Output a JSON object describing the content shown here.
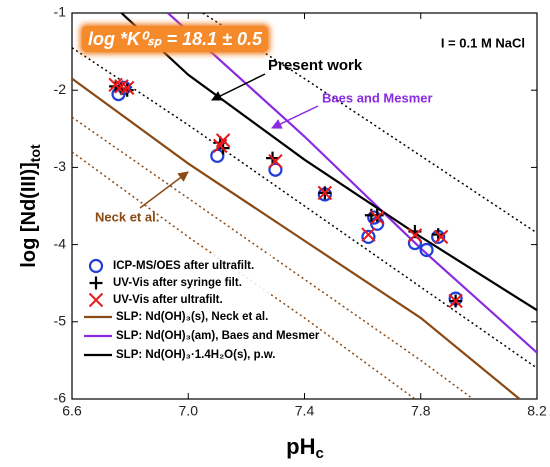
{
  "chart_data": {
    "type": "scatter",
    "xlabel": {
      "main": "pH",
      "sub": "c"
    },
    "ylabel": {
      "main": "log [Nd(III)]",
      "sub": "tot"
    },
    "xlim": [
      6.6,
      8.2
    ],
    "ylim": [
      -6,
      -1
    ],
    "xticks": [
      6.6,
      {
        "value": 7,
        "label": "7.0"
      },
      7.4,
      7.8,
      8.2
    ],
    "yticks": [
      -1,
      -2,
      -3,
      -4,
      -5,
      -6
    ],
    "series": [
      {
        "name": "ICP-MS/OES after ultrafilt.",
        "color": "#1f3fd8",
        "marker": "circle",
        "x": [
          6.76,
          6.78,
          7.1,
          7.3,
          7.47,
          7.62,
          7.64,
          7.65,
          7.78,
          7.82,
          7.86,
          7.92
        ],
        "values": [
          -2.05,
          -1.97,
          -2.85,
          -3.03,
          -3.35,
          -3.9,
          -3.65,
          -3.73,
          -3.98,
          -4.07,
          -3.9,
          -4.7
        ]
      },
      {
        "name": "UV-Vis after syringe filt.",
        "color": "#000000",
        "marker": "plus",
        "x": [
          6.75,
          6.77,
          6.79,
          7.11,
          7.12,
          7.29,
          7.47,
          7.63,
          7.65,
          7.78,
          7.86,
          7.92
        ],
        "values": [
          -1.95,
          -1.98,
          -2.0,
          -2.68,
          -2.75,
          -2.88,
          -3.33,
          -3.62,
          -3.62,
          -3.83,
          -3.87,
          -4.73
        ]
      },
      {
        "name": "UV-Vis after ultrafilt.",
        "color": "#e8191c",
        "marker": "cross",
        "x": [
          6.75,
          6.77,
          6.79,
          7.11,
          7.12,
          7.3,
          7.47,
          7.62,
          7.65,
          7.78,
          7.87,
          7.92
        ],
        "values": [
          -1.93,
          -1.95,
          -1.97,
          -2.72,
          -2.65,
          -2.92,
          -3.33,
          -3.87,
          -3.65,
          -3.88,
          -3.9,
          -4.73
        ]
      }
    ],
    "curves": [
      {
        "name": "SLP: Nd(OH)₃(s), Neck et al.",
        "color": "#8b4a14",
        "x": [
          6.6,
          7.0,
          7.4,
          7.8,
          8.14
        ],
        "values": [
          -1.85,
          -2.95,
          -3.95,
          -4.95,
          -6.0
        ],
        "uncertainty": [
          {
            "x": [
              6.6,
              7.0,
              7.4,
              7.8,
              7.98
            ],
            "values": [
              -2.35,
              -3.4,
              -4.45,
              -5.5,
              -6.0
            ]
          },
          {
            "x": [
              6.6,
              7.0,
              7.4,
              7.78
            ],
            "values": [
              -2.8,
              -3.9,
              -4.95,
              -6.0
            ]
          }
        ]
      },
      {
        "name": "SLP: Nd(OH)₃(am), Baes and Mesmer",
        "color": "#8a2be2",
        "x": [
          6.93,
          7.4,
          7.8,
          8.2
        ],
        "values": [
          -1.0,
          -2.6,
          -4.05,
          -5.4
        ]
      },
      {
        "name": "SLP: Nd(OH)₃·1.4H₂O(s), p.w.",
        "color": "#000000",
        "x": [
          6.77,
          7.0,
          7.4,
          7.8,
          8.2
        ],
        "values": [
          -1.0,
          -1.8,
          -2.9,
          -3.9,
          -4.85
        ],
        "uncertainty": [
          {
            "x": [
              7.05,
              7.4,
              7.8,
              8.2
            ],
            "values": [
              -1.0,
              -1.85,
              -2.85,
              -3.85
            ]
          },
          {
            "x": [
              6.6,
              7.0,
              7.4,
              7.8,
              8.2
            ],
            "values": [
              -1.45,
              -2.45,
              -3.5,
              -4.55,
              -5.6
            ]
          }
        ]
      }
    ],
    "annotations": {
      "constant": "log *K⁰ₛₚ = 18.1 ± 0.5",
      "medium": "I = 0.1 M NaCl",
      "present": "Present work",
      "baes": "Baes and Mesmer",
      "neck": "Neck et al."
    }
  }
}
